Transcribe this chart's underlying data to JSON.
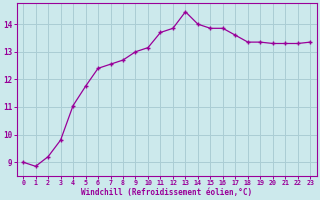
{
  "x": [
    0,
    1,
    2,
    3,
    4,
    5,
    6,
    7,
    8,
    9,
    10,
    11,
    12,
    13,
    14,
    15,
    16,
    17,
    18,
    19,
    20,
    21,
    22,
    23
  ],
  "y": [
    9.0,
    8.85,
    9.2,
    9.8,
    11.05,
    11.75,
    12.4,
    12.55,
    12.7,
    13.0,
    13.15,
    13.7,
    13.85,
    14.45,
    14.0,
    13.85,
    13.85,
    13.6,
    13.35,
    13.35,
    13.3,
    13.3,
    13.3,
    13.35
  ],
  "line_color": "#990099",
  "marker": "+",
  "bg_color": "#cce9ec",
  "grid_color": "#aacdd4",
  "xlabel": "Windchill (Refroidissement éolien,°C)",
  "xlabel_color": "#990099",
  "tick_color": "#990099",
  "ylim": [
    8.5,
    14.75
  ],
  "xlim": [
    -0.5,
    23.5
  ],
  "yticks": [
    9,
    10,
    11,
    12,
    13,
    14
  ],
  "xticks": [
    0,
    1,
    2,
    3,
    4,
    5,
    6,
    7,
    8,
    9,
    10,
    11,
    12,
    13,
    14,
    15,
    16,
    17,
    18,
    19,
    20,
    21,
    22,
    23
  ]
}
